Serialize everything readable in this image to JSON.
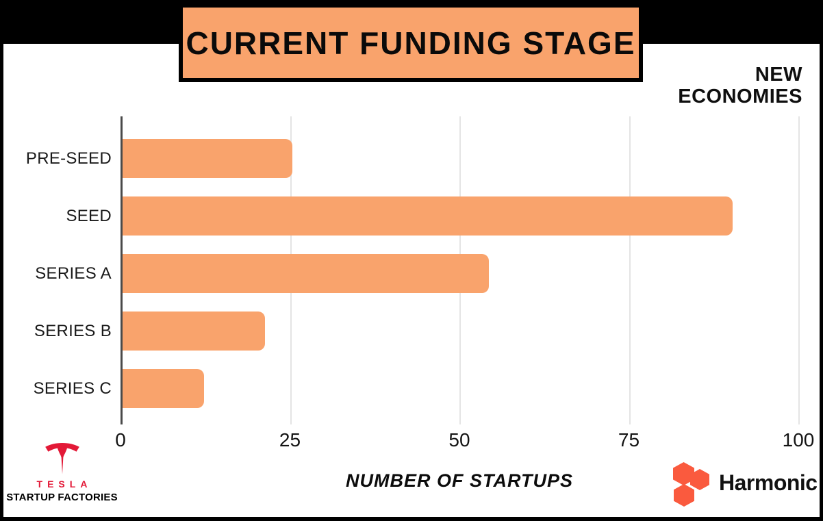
{
  "page": {
    "title": "CURRENT FUNDING STAGE",
    "brand_top_right": {
      "line1": "NEW",
      "line2": "ECONOMIES"
    },
    "footer": {
      "tesla": {
        "wordmark": "TESLA",
        "subtitle": "STARTUP FACTORIES"
      },
      "harmonic": {
        "label": "Harmonic"
      }
    }
  },
  "chart_data": {
    "type": "bar",
    "orientation": "horizontal",
    "title": "CURRENT FUNDING STAGE",
    "categories": [
      "PRE-SEED",
      "SEED",
      "SERIES A",
      "SERIES B",
      "SERIES C"
    ],
    "values": [
      25,
      90,
      54,
      21,
      12
    ],
    "xlabel": "NUMBER OF STARTUPS",
    "ylabel": "",
    "xticks": [
      0,
      25,
      50,
      75,
      100
    ],
    "xlim": [
      0,
      100
    ],
    "grid": true,
    "legend": false,
    "bar_color": "#F9A36C"
  },
  "colors": {
    "banner_bg": "#F9A36C",
    "banner_border": "#000000",
    "top_bar": "#000000",
    "axis_line": "#4A4A4A",
    "gridline": "#E4E4E4",
    "bar": "#F9A36C",
    "tesla_red": "#E31937",
    "harmonic_orange": "#FA5A3E",
    "text": "#111111"
  },
  "icons": {
    "tesla": "tesla-t-icon",
    "harmonic": "harmonic-hexagons-icon"
  }
}
